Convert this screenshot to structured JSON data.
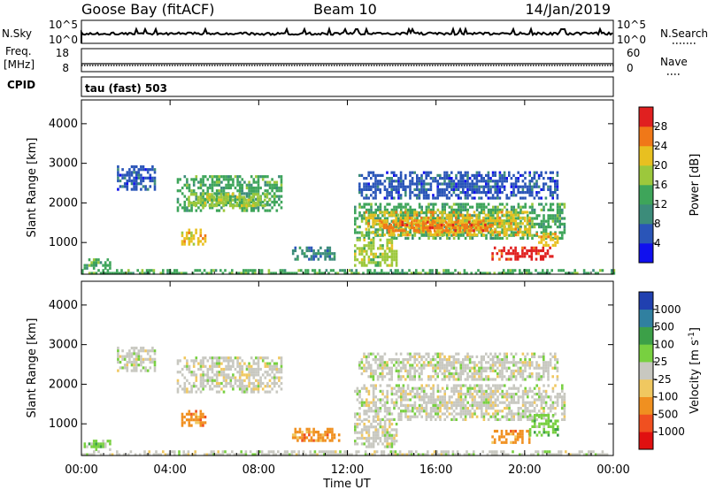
{
  "header": {
    "station": "Goose Bay (fitACF)",
    "beam": "Beam 10",
    "date": "14/Jan/2019"
  },
  "strip_labels": {
    "nsky": "N.Sky",
    "nsky_ticks": [
      "10^5",
      "10^0"
    ],
    "nsearch": "N.Search",
    "nsearch_ticks": [
      "10^5",
      "10^0"
    ],
    "freq_line1": "Freq.",
    "freq_line2": "[MHz]",
    "freq_ticks": [
      "18",
      "8"
    ],
    "nave": "Nave",
    "nave_ticks": [
      "60",
      "0"
    ],
    "cpid": "CPID",
    "cpid_value": "tau (fast) 503"
  },
  "colors": {
    "power": [
      "#1010ee",
      "#2a55b8",
      "#3c8c7a",
      "#3ea55a",
      "#9cc83c",
      "#e8c020",
      "#f07818",
      "#e02020"
    ],
    "velocity": [
      "#e01010",
      "#f05020",
      "#f09020",
      "#f0c860",
      "#c8c8c0",
      "#78d040",
      "#3ca048",
      "#3080a0",
      "#2040b0"
    ]
  },
  "chart_data": [
    {
      "type": "heatmap",
      "panel": "power",
      "xlabel": "",
      "ylabel": "Slant Range [km]",
      "ylim": [
        200,
        4600
      ],
      "yticks": [
        "1000",
        "2000",
        "3000",
        "4000"
      ],
      "xticks": [
        "00:00",
        "04:00",
        "08:00",
        "12:00",
        "16:00",
        "20:00",
        "00:00"
      ],
      "colorbar_label": "Power [dB]",
      "colorbar_ticks": [
        "4",
        "8",
        "12",
        "16",
        "20",
        "24",
        "28"
      ],
      "regions": [
        {
          "t0": 1.6,
          "t1": 3.3,
          "r0": 2350,
          "r1": 2950,
          "level": 1
        },
        {
          "t0": 4.3,
          "t1": 9.0,
          "r0": 1800,
          "r1": 2700,
          "level": 3
        },
        {
          "t0": 4.8,
          "t1": 8.5,
          "r0": 1900,
          "r1": 2250,
          "level": 4
        },
        {
          "t0": 4.5,
          "t1": 5.6,
          "r0": 950,
          "r1": 1350,
          "level": 5
        },
        {
          "t0": 9.5,
          "t1": 11.6,
          "r0": 600,
          "r1": 900,
          "level": 2
        },
        {
          "t0": 0.1,
          "t1": 1.3,
          "r0": 380,
          "r1": 600,
          "level": 3
        },
        {
          "t0": 12.3,
          "t1": 21.8,
          "r0": 1100,
          "r1": 2000,
          "level": 3
        },
        {
          "t0": 12.8,
          "t1": 20.2,
          "r0": 1200,
          "r1": 1800,
          "level": 5
        },
        {
          "t0": 13.5,
          "t1": 18.5,
          "r0": 1300,
          "r1": 1550,
          "level": 6
        },
        {
          "t0": 12.3,
          "t1": 14.2,
          "r0": 450,
          "r1": 1100,
          "level": 4
        },
        {
          "t0": 18.5,
          "t1": 21.2,
          "r0": 600,
          "r1": 900,
          "level": 7
        },
        {
          "t0": 20.5,
          "t1": 21.5,
          "r0": 950,
          "r1": 1250,
          "level": 5
        },
        {
          "t0": 12.5,
          "t1": 21.5,
          "r0": 2100,
          "r1": 2800,
          "level": 1
        },
        {
          "t0": 0.0,
          "t1": 24.0,
          "r0": 200,
          "r1": 330,
          "level": 3
        }
      ]
    },
    {
      "type": "heatmap",
      "panel": "velocity",
      "xlabel": "Time UT",
      "ylabel": "Slant Range [km]",
      "ylim": [
        200,
        4600
      ],
      "yticks": [
        "1000",
        "2000",
        "3000",
        "4000"
      ],
      "xticks": [
        "00:00",
        "04:00",
        "08:00",
        "12:00",
        "16:00",
        "20:00",
        "00:00"
      ],
      "colorbar_label": "Velocity [m s",
      "colorbar_superscript": "-1",
      "colorbar_ticks": [
        "1000",
        "500",
        "100",
        "25",
        "-25",
        "-100",
        "-500",
        "-1000"
      ],
      "regions": [
        {
          "t0": 1.6,
          "t1": 3.3,
          "r0": 2350,
          "r1": 2950,
          "level": 4
        },
        {
          "t0": 4.3,
          "t1": 9.0,
          "r0": 1800,
          "r1": 2700,
          "level": 4
        },
        {
          "t0": 4.5,
          "t1": 5.6,
          "r0": 950,
          "r1": 1350,
          "level": 2
        },
        {
          "t0": 9.5,
          "t1": 11.6,
          "r0": 600,
          "r1": 900,
          "level": 2
        },
        {
          "t0": 0.1,
          "t1": 1.3,
          "r0": 380,
          "r1": 600,
          "level": 5
        },
        {
          "t0": 12.3,
          "t1": 21.8,
          "r0": 1100,
          "r1": 2000,
          "level": 4
        },
        {
          "t0": 12.3,
          "t1": 14.2,
          "r0": 450,
          "r1": 1100,
          "level": 4
        },
        {
          "t0": 18.5,
          "t1": 20.2,
          "r0": 550,
          "r1": 850,
          "level": 2
        },
        {
          "t0": 20.2,
          "t1": 21.5,
          "r0": 700,
          "r1": 1250,
          "level": 5
        },
        {
          "t0": 12.5,
          "t1": 21.5,
          "r0": 2100,
          "r1": 2800,
          "level": 4
        },
        {
          "t0": 0.0,
          "t1": 24.0,
          "r0": 200,
          "r1": 330,
          "level": 4
        }
      ]
    }
  ]
}
